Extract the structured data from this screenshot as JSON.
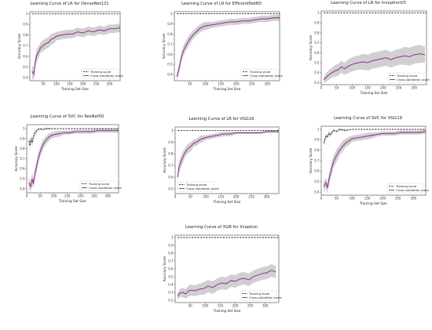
{
  "colors": {
    "training": "#222222",
    "validation": "#8b1a8b",
    "band": "#c8c8c8",
    "frame": "#444444"
  },
  "chart_data": [
    {
      "type": "line",
      "title": "Learning Curve of LR for DenseNet121",
      "xlabel": "Training Set Size",
      "ylabel": "Accuracy Score",
      "xlim": [
        0,
        340
      ],
      "ylim": [
        0.37,
        1.02
      ],
      "xticks": [
        50,
        100,
        150,
        200,
        250,
        300
      ],
      "yticks": [
        0.4,
        0.5,
        0.6,
        0.7,
        0.8,
        0.9,
        1.0
      ],
      "legend": "lower-right",
      "series": [
        {
          "name": "Training score",
          "style": "dashed",
          "x": [
            8,
            40,
            80,
            120,
            160,
            200,
            240,
            280,
            320,
            340
          ],
          "y": [
            1.0,
            1.0,
            1.0,
            1.0,
            1.0,
            1.0,
            1.0,
            1.0,
            1.0,
            1.0
          ]
        },
        {
          "name": "Cross-validation score",
          "style": "solid",
          "x": [
            8,
            15,
            20,
            25,
            30,
            35,
            40,
            50,
            60,
            70,
            80,
            90,
            100,
            120,
            140,
            160,
            180,
            200,
            220,
            240,
            260,
            280,
            300,
            320,
            340
          ],
          "y": [
            0.46,
            0.43,
            0.54,
            0.6,
            0.63,
            0.65,
            0.68,
            0.7,
            0.72,
            0.73,
            0.76,
            0.77,
            0.79,
            0.8,
            0.81,
            0.81,
            0.83,
            0.82,
            0.84,
            0.83,
            0.85,
            0.84,
            0.86,
            0.86,
            0.87
          ],
          "band": [
            0.06,
            0.06,
            0.06,
            0.06,
            0.06,
            0.05,
            0.05,
            0.05,
            0.05,
            0.05,
            0.05,
            0.05,
            0.04,
            0.04,
            0.04,
            0.04,
            0.04,
            0.04,
            0.04,
            0.04,
            0.04,
            0.04,
            0.04,
            0.04,
            0.04
          ]
        }
      ]
    },
    {
      "type": "line",
      "title": "Learning Curve of LR for EfficientNetB0",
      "xlabel": "Training Set Size",
      "ylabel": "Accuracy Score",
      "xlim": [
        0,
        340
      ],
      "ylim": [
        0.34,
        1.02
      ],
      "xticks": [
        50,
        100,
        150,
        200,
        250,
        300
      ],
      "yticks": [
        0.4,
        0.5,
        0.6,
        0.7,
        0.8,
        0.9,
        1.0
      ],
      "legend": "lower-right",
      "series": [
        {
          "name": "Training score",
          "style": "dashed",
          "x": [
            8,
            40,
            80,
            120,
            160,
            200,
            240,
            280,
            320,
            340
          ],
          "y": [
            1.0,
            1.0,
            1.0,
            1.0,
            1.0,
            1.0,
            1.0,
            1.0,
            1.0,
            1.0
          ]
        },
        {
          "name": "Cross-validation score",
          "style": "solid",
          "x": [
            8,
            15,
            20,
            25,
            30,
            40,
            50,
            60,
            70,
            80,
            90,
            100,
            120,
            140,
            160,
            180,
            200,
            220,
            240,
            260,
            280,
            300,
            320,
            340
          ],
          "y": [
            0.38,
            0.46,
            0.53,
            0.6,
            0.64,
            0.7,
            0.75,
            0.79,
            0.82,
            0.85,
            0.87,
            0.88,
            0.89,
            0.9,
            0.91,
            0.92,
            0.92,
            0.93,
            0.93,
            0.94,
            0.95,
            0.95,
            0.96,
            0.96
          ],
          "band": [
            0.04,
            0.05,
            0.05,
            0.05,
            0.05,
            0.05,
            0.05,
            0.04,
            0.04,
            0.04,
            0.04,
            0.04,
            0.03,
            0.03,
            0.03,
            0.03,
            0.03,
            0.03,
            0.03,
            0.03,
            0.03,
            0.03,
            0.03,
            0.03
          ]
        }
      ]
    },
    {
      "type": "line",
      "title": "Learning Curve of LR for InceptionV3",
      "xlabel": "Training Set Size",
      "ylabel": "Accuracy Score",
      "xlim": [
        0,
        340
      ],
      "ylim": [
        0.28,
        1.02
      ],
      "xticks": [
        0,
        50,
        100,
        150,
        200,
        250,
        300
      ],
      "yticks": [
        0.3,
        0.4,
        0.5,
        0.6,
        0.7,
        0.8,
        0.9,
        1.0
      ],
      "legend": "lower-right",
      "series": [
        {
          "name": "Training score",
          "style": "dashed",
          "x": [
            8,
            40,
            80,
            120,
            160,
            200,
            240,
            280,
            320,
            340
          ],
          "y": [
            1.0,
            1.0,
            1.0,
            1.0,
            1.0,
            1.0,
            1.0,
            1.0,
            1.0,
            1.0
          ]
        },
        {
          "name": "Cross-validation score",
          "style": "solid",
          "x": [
            8,
            15,
            25,
            35,
            45,
            55,
            65,
            75,
            90,
            105,
            120,
            135,
            150,
            165,
            180,
            195,
            210,
            225,
            240,
            255,
            270,
            285,
            300,
            320,
            335
          ],
          "y": [
            0.33,
            0.35,
            0.38,
            0.4,
            0.42,
            0.43,
            0.46,
            0.44,
            0.47,
            0.49,
            0.5,
            0.51,
            0.5,
            0.52,
            0.53,
            0.54,
            0.55,
            0.53,
            0.55,
            0.56,
            0.57,
            0.56,
            0.58,
            0.59,
            0.58
          ],
          "band": [
            0.03,
            0.04,
            0.05,
            0.05,
            0.06,
            0.06,
            0.06,
            0.06,
            0.07,
            0.07,
            0.07,
            0.08,
            0.08,
            0.08,
            0.08,
            0.08,
            0.08,
            0.08,
            0.08,
            0.08,
            0.09,
            0.09,
            0.09,
            0.09,
            0.08
          ]
        }
      ]
    },
    {
      "type": "line",
      "title": "Learning Curve of SVC for ResNet50",
      "xlabel": "Training Set Size",
      "ylabel": "Accuracy Score",
      "xlim": [
        0,
        340
      ],
      "ylim": [
        0.36,
        1.04
      ],
      "xticks": [
        0,
        50,
        100,
        150,
        200,
        250,
        300
      ],
      "yticks": [
        0.4,
        0.5,
        0.6,
        0.7,
        0.8,
        0.9,
        1.0
      ],
      "legend": "lower-right",
      "series": [
        {
          "name": "Training score",
          "style": "dashed",
          "x": [
            8,
            12,
            16,
            20,
            25,
            30,
            35,
            40,
            50,
            60,
            70,
            80,
            100,
            150,
            200,
            250,
            300,
            340
          ],
          "y": [
            0.88,
            0.83,
            0.9,
            0.86,
            0.92,
            0.96,
            0.97,
            0.99,
            1.0,
            0.99,
            1.0,
            1.0,
            1.0,
            1.0,
            1.0,
            1.0,
            1.0,
            1.0
          ],
          "band": [
            0.03,
            0.04,
            0.03,
            0.04,
            0.03,
            0.02,
            0.02,
            0.01,
            0.01,
            0.01,
            0.01,
            0.01,
            0.0,
            0.0,
            0.0,
            0.0,
            0.0,
            0.0
          ]
        },
        {
          "name": "Cross-validation score",
          "style": "solid",
          "x": [
            8,
            15,
            20,
            25,
            30,
            35,
            40,
            50,
            60,
            70,
            80,
            90,
            100,
            120,
            140,
            160,
            180,
            200,
            220,
            240,
            260,
            280,
            300,
            320,
            340
          ],
          "y": [
            0.46,
            0.42,
            0.5,
            0.45,
            0.55,
            0.6,
            0.67,
            0.77,
            0.84,
            0.88,
            0.91,
            0.93,
            0.94,
            0.95,
            0.96,
            0.96,
            0.97,
            0.97,
            0.97,
            0.97,
            0.98,
            0.98,
            0.98,
            0.98,
            0.98
          ],
          "band": [
            0.06,
            0.05,
            0.06,
            0.05,
            0.06,
            0.06,
            0.06,
            0.05,
            0.05,
            0.04,
            0.04,
            0.03,
            0.03,
            0.03,
            0.02,
            0.02,
            0.02,
            0.02,
            0.02,
            0.02,
            0.02,
            0.02,
            0.02,
            0.02,
            0.02
          ]
        }
      ]
    },
    {
      "type": "line",
      "title": "Learning Curve of LR for VGG16",
      "xlabel": "Training Set Size",
      "ylabel": "Accuracy Score",
      "xlim": [
        0,
        340
      ],
      "ylim": [
        0.46,
        1.03
      ],
      "xticks": [
        0,
        50,
        100,
        150,
        200,
        250,
        300
      ],
      "yticks": [
        0.5,
        0.6,
        0.7,
        0.8,
        0.9,
        1.0
      ],
      "legend": "lower-left",
      "series": [
        {
          "name": "Training score",
          "style": "dashed",
          "x": [
            8,
            40,
            80,
            120,
            160,
            200,
            240,
            280,
            320,
            340
          ],
          "y": [
            1.0,
            1.0,
            1.0,
            1.0,
            1.0,
            1.0,
            1.0,
            1.0,
            1.0,
            1.0
          ]
        },
        {
          "name": "Cross-validation score",
          "style": "solid",
          "x": [
            8,
            12,
            20,
            25,
            30,
            40,
            50,
            60,
            70,
            80,
            90,
            100,
            120,
            140,
            160,
            180,
            200,
            220,
            240,
            260,
            280,
            300,
            320,
            340
          ],
          "y": [
            0.6,
            0.68,
            0.74,
            0.77,
            0.8,
            0.84,
            0.86,
            0.89,
            0.9,
            0.92,
            0.93,
            0.94,
            0.95,
            0.96,
            0.97,
            0.97,
            0.98,
            0.98,
            0.98,
            0.98,
            0.98,
            0.99,
            0.99,
            0.99
          ],
          "band": [
            0.04,
            0.05,
            0.05,
            0.05,
            0.04,
            0.04,
            0.04,
            0.03,
            0.03,
            0.03,
            0.03,
            0.02,
            0.02,
            0.02,
            0.02,
            0.02,
            0.01,
            0.01,
            0.01,
            0.01,
            0.01,
            0.01,
            0.01,
            0.01
          ]
        }
      ]
    },
    {
      "type": "line",
      "title": "Learning Curve of SVC for VGG19",
      "xlabel": "Training Set Size",
      "ylabel": "Accuracy Score",
      "xlim": [
        0,
        340
      ],
      "ylim": [
        0.37,
        1.03
      ],
      "xticks": [
        0,
        50,
        100,
        150,
        200,
        250,
        300
      ],
      "yticks": [
        0.4,
        0.5,
        0.6,
        0.7,
        0.8,
        0.9,
        1.0
      ],
      "legend": "lower-right",
      "series": [
        {
          "name": "Training score",
          "style": "dashed",
          "x": [
            8,
            12,
            16,
            20,
            25,
            30,
            40,
            50,
            60,
            80,
            100,
            150,
            200,
            250,
            300,
            340
          ],
          "y": [
            0.87,
            0.9,
            0.94,
            0.93,
            0.96,
            0.95,
            0.99,
            0.98,
            1.0,
            0.99,
            1.0,
            1.0,
            1.0,
            1.0,
            1.0,
            1.0
          ],
          "band": [
            0.03,
            0.03,
            0.02,
            0.02,
            0.02,
            0.02,
            0.01,
            0.01,
            0.01,
            0.01,
            0.0,
            0.0,
            0.0,
            0.0,
            0.0,
            0.0
          ]
        },
        {
          "name": "Cross-validation score",
          "style": "solid",
          "x": [
            8,
            15,
            20,
            25,
            30,
            35,
            40,
            50,
            60,
            70,
            80,
            90,
            100,
            120,
            140,
            160,
            180,
            200,
            220,
            240,
            260,
            280,
            300,
            320,
            340
          ],
          "y": [
            0.45,
            0.49,
            0.44,
            0.52,
            0.58,
            0.64,
            0.69,
            0.75,
            0.8,
            0.84,
            0.87,
            0.89,
            0.91,
            0.92,
            0.93,
            0.94,
            0.95,
            0.96,
            0.96,
            0.96,
            0.97,
            0.97,
            0.97,
            0.97,
            0.98
          ],
          "band": [
            0.05,
            0.05,
            0.05,
            0.06,
            0.06,
            0.06,
            0.06,
            0.06,
            0.05,
            0.05,
            0.04,
            0.04,
            0.03,
            0.03,
            0.03,
            0.03,
            0.02,
            0.02,
            0.02,
            0.02,
            0.02,
            0.02,
            0.02,
            0.02,
            0.02
          ]
        }
      ]
    },
    {
      "type": "line",
      "title": "Learning Curve of XGB for Xception",
      "xlabel": "Training Set Size",
      "ylabel": "Accuracy Score",
      "xlim": [
        0,
        345
      ],
      "ylim": [
        0.17,
        1.03
      ],
      "xticks": [
        50,
        100,
        150,
        200,
        250,
        300
      ],
      "yticks": [
        0.2,
        0.3,
        0.4,
        0.5,
        0.6,
        0.7,
        0.8,
        0.9,
        1.0
      ],
      "legend": "lower-right",
      "series": [
        {
          "name": "Training score",
          "style": "dashed",
          "x": [
            8,
            40,
            80,
            120,
            160,
            200,
            240,
            280,
            320,
            345
          ],
          "y": [
            1.0,
            1.0,
            1.0,
            1.0,
            1.0,
            1.0,
            1.0,
            1.0,
            1.0,
            1.0
          ]
        },
        {
          "name": "Cross-validation score",
          "style": "solid",
          "x": [
            8,
            15,
            25,
            35,
            45,
            55,
            65,
            80,
            95,
            110,
            125,
            140,
            155,
            170,
            185,
            200,
            215,
            230,
            245,
            260,
            275,
            290,
            305,
            320,
            335
          ],
          "y": [
            0.25,
            0.29,
            0.3,
            0.28,
            0.32,
            0.33,
            0.32,
            0.34,
            0.35,
            0.38,
            0.36,
            0.4,
            0.42,
            0.41,
            0.45,
            0.44,
            0.47,
            0.48,
            0.46,
            0.5,
            0.52,
            0.54,
            0.55,
            0.58,
            0.56
          ],
          "band": [
            0.04,
            0.05,
            0.06,
            0.06,
            0.07,
            0.07,
            0.07,
            0.07,
            0.08,
            0.08,
            0.08,
            0.08,
            0.08,
            0.08,
            0.08,
            0.08,
            0.08,
            0.08,
            0.08,
            0.08,
            0.08,
            0.08,
            0.08,
            0.08,
            0.08
          ]
        }
      ]
    }
  ]
}
